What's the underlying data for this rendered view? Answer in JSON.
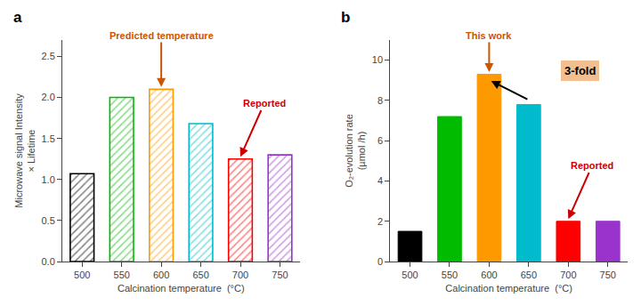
{
  "chart_data": [
    {
      "type": "bar",
      "title": "a",
      "categories": [
        "500",
        "550",
        "600",
        "650",
        "700",
        "750"
      ],
      "values": [
        1.07,
        2.0,
        2.1,
        1.68,
        1.25,
        1.3
      ],
      "colors": [
        "#000000",
        "#00bb00",
        "#ff9900",
        "#00bbcc",
        "#ff0000",
        "#9933cc"
      ],
      "xlabel": "Calcination temperature  (°C)",
      "ylabel": "Microwave signal Intensity\n× Lifetime",
      "ylim": [
        0,
        2.7
      ],
      "yticks": [
        {
          "value": 0.0,
          "label": "0.0"
        },
        0.5,
        {
          "value": 1.0,
          "label": "1.0"
        },
        1.5,
        {
          "value": 2.0,
          "label": "2.0"
        },
        2.5
      ],
      "grid": false,
      "annotations": [
        {
          "text": "Predicted temperature",
          "category": "600",
          "color": "#cc5500"
        },
        {
          "text": "Reported",
          "category": "700",
          "color": "#cc0000"
        }
      ]
    },
    {
      "type": "bar",
      "title": "b",
      "categories": [
        "500",
        "550",
        "600",
        "650",
        "700",
        "750"
      ],
      "values": [
        1.5,
        7.2,
        9.3,
        7.8,
        2.0,
        2.0
      ],
      "colors": [
        "#000000",
        "#00bb00",
        "#ff9900",
        "#00bbcc",
        "#ff0000",
        "#9933cc"
      ],
      "xlabel": "Calcination temperature  (°C)",
      "ylabel": "O₂-evolution rate\n(µmol /h)",
      "ylim": [
        0,
        11
      ],
      "yticks": [
        0,
        2,
        4,
        6,
        8,
        10
      ],
      "grid": false,
      "annotations": [
        {
          "text": "This work",
          "category": "600",
          "color": "#cc5500"
        },
        {
          "text": "Reported",
          "category": "700",
          "color": "#cc0000"
        },
        {
          "text": "3-fold",
          "color": "#f2c090",
          "arrow": {
            "from": "650",
            "to": "600",
            "color": "#000000"
          }
        }
      ]
    }
  ]
}
